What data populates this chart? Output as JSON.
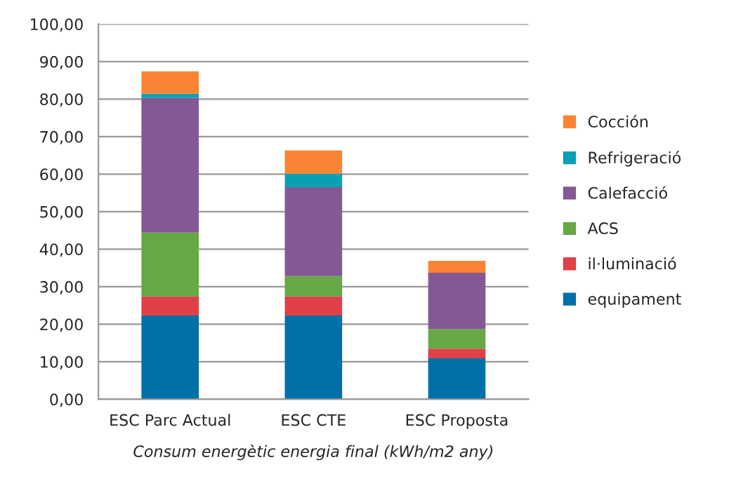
{
  "chart_data": {
    "type": "bar",
    "stacked": true,
    "xlabel": "Consum energètic energia final (kWh/m2 any)",
    "categories": [
      "ESC Parc Actual",
      "ESC CTE",
      "ESC Proposta"
    ],
    "series": [
      {
        "name": "equipament",
        "color": "#0070a8",
        "values": [
          22.3,
          22.3,
          10.9
        ]
      },
      {
        "name": "il·luminació",
        "color": "#e04048",
        "values": [
          5.1,
          5.1,
          2.6
        ]
      },
      {
        "name": "ACS",
        "color": "#66a844",
        "values": [
          17.0,
          5.4,
          5.2
        ]
      },
      {
        "name": "Calefacció",
        "color": "#845894",
        "values": [
          35.9,
          23.7,
          15.0
        ]
      },
      {
        "name": "Refrigeració",
        "color": "#0aa0b4",
        "values": [
          1.1,
          3.6,
          null
        ]
      },
      {
        "name": "Cocción",
        "color": "#fa8434",
        "values": [
          6.0,
          6.2,
          3.2
        ]
      }
    ],
    "ylim": [
      0,
      100
    ],
    "yticks": [
      {
        "value": 0,
        "label": "0,00"
      },
      {
        "value": 10,
        "label": "10,00"
      },
      {
        "value": 20,
        "label": "20,00"
      },
      {
        "value": 30,
        "label": "30,00"
      },
      {
        "value": 40,
        "label": "40,00"
      },
      {
        "value": 50,
        "label": "50,00"
      },
      {
        "value": 60,
        "label": "60,00"
      },
      {
        "value": 70,
        "label": "70,00"
      },
      {
        "value": 80,
        "label": "80,00"
      },
      {
        "value": 90,
        "label": "90,00"
      },
      {
        "value": 100,
        "label": "100,00"
      }
    ],
    "grid": "y",
    "legend": "right"
  }
}
